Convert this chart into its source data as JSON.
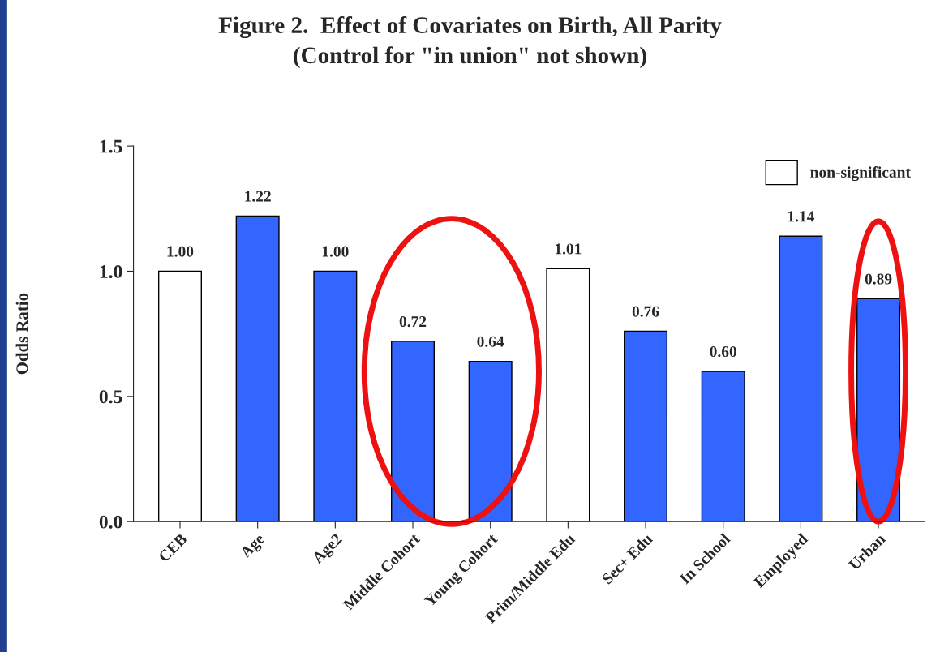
{
  "chart_data": {
    "type": "bar",
    "title": "Figure 2.  Effect of Covariates on Birth, All Parity\n(Control for \"in union\" not shown)",
    "ylabel": "Odds Ratio",
    "categories": [
      "CEB",
      "Age",
      "Age2",
      "Middle Cohort",
      "Young Cohort",
      "Prim/Middle Edu",
      "Sec+ Edu",
      "In School",
      "Employed",
      "Urban"
    ],
    "stacked": true,
    "series": [
      {
        "name": "non-significant",
        "color": "#ffffff",
        "values": [
          1.0,
          null,
          null,
          null,
          null,
          1.01,
          null,
          null,
          null,
          null
        ],
        "value_labels": [
          "1.00",
          null,
          null,
          null,
          null,
          "1.01",
          null,
          null,
          null,
          null
        ]
      },
      {
        "color": "#3366ff",
        "values": [
          null,
          1.22,
          1.0,
          0.72,
          0.64,
          null,
          0.76,
          0.6,
          1.14,
          0.89
        ],
        "value_labels": [
          null,
          "1.22",
          "1.00",
          "0.72",
          "0.64",
          null,
          "0.76",
          "0.60",
          "1.14",
          "0.89"
        ]
      }
    ],
    "ylim": [
      0,
      1.5
    ],
    "yticks": [
      {
        "value": 0,
        "label": "0.0"
      },
      {
        "value": 0.5,
        "label": "0.5"
      },
      {
        "value": 1.0,
        "label": "1.0"
      },
      {
        "value": 1.5,
        "label": "1.5"
      }
    ],
    "grid": false,
    "legend": "top right"
  }
}
